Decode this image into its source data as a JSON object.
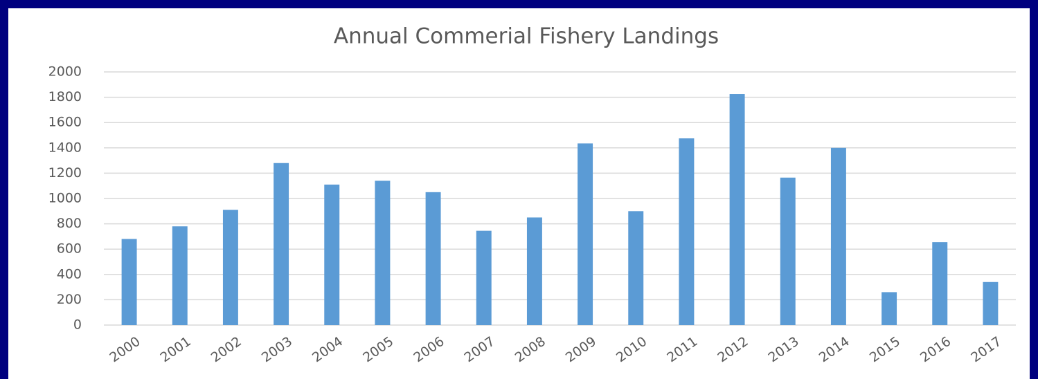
{
  "chart_data": {
    "type": "bar",
    "title": "Annual Commerial Fishery Landings",
    "categories": [
      "2000",
      "2001",
      "2002",
      "2003",
      "2004",
      "2005",
      "2006",
      "2007",
      "2008",
      "2009",
      "2010",
      "2011",
      "2012",
      "2013",
      "2014",
      "2015",
      "2016",
      "2017"
    ],
    "values": [
      680,
      780,
      910,
      1280,
      1110,
      1140,
      1050,
      745,
      850,
      1435,
      900,
      1475,
      1825,
      1165,
      1400,
      260,
      655,
      340
    ],
    "color": "#5b9bd5",
    "ylim": [
      0,
      2000
    ],
    "yticks": [
      0,
      200,
      400,
      600,
      800,
      1000,
      1200,
      1400,
      1600,
      1800,
      2000
    ],
    "grid": true
  }
}
